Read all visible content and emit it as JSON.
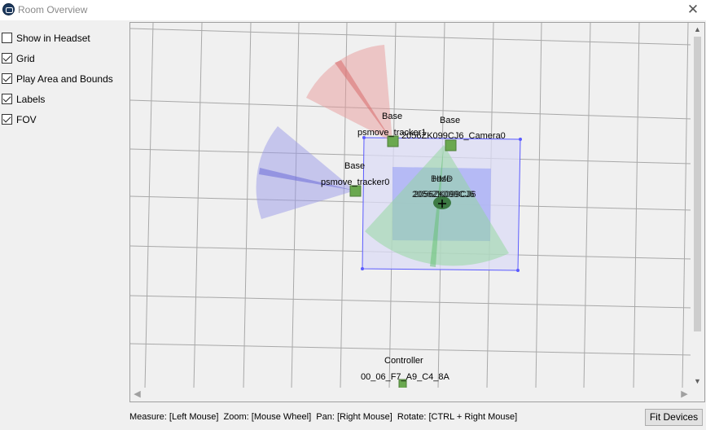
{
  "window": {
    "title": "Room Overview",
    "close_label": "✕"
  },
  "options": [
    {
      "label": "Show in Headset",
      "checked": false
    },
    {
      "label": "Grid",
      "checked": true
    },
    {
      "label": "Play Area and Bounds",
      "checked": true
    },
    {
      "label": "Labels",
      "checked": true
    },
    {
      "label": "FOV",
      "checked": true
    }
  ],
  "devices": {
    "tracker1": {
      "role": "Base",
      "name": "psmove_tracker1"
    },
    "camera0": {
      "role": "Base",
      "name": "2056ZK099CJ6_Camera0"
    },
    "tracker0": {
      "role": "Base",
      "name": "psmove_tracker0"
    },
    "hmd_a": {
      "role": "Base",
      "name": "2056ZK099CJ6"
    },
    "hmd_b": {
      "role": "HMD",
      "name": "2056ZK099CJ6"
    },
    "controller": {
      "role": "Controller",
      "name": "00_06_F7_A9_C4_8A"
    }
  },
  "colors": {
    "fov_red": "#e89a9a",
    "fov_blue": "#9a9ae8",
    "fov_green": "#8fd89a",
    "play_area": "#5a5aff",
    "device": "#6aa84f",
    "grid": "#a8a8a8"
  },
  "status_bar": {
    "help_text": "Measure: [Left Mouse]  Zoom: [Mouse Wheel]  Pan: [Right Mouse]  Rotate: [CTRL + Right Mouse]"
  },
  "buttons": {
    "fit_devices": "Fit Devices"
  },
  "scroll": {
    "up": "▲",
    "down": "▼",
    "left": "◀",
    "right": "▶"
  }
}
